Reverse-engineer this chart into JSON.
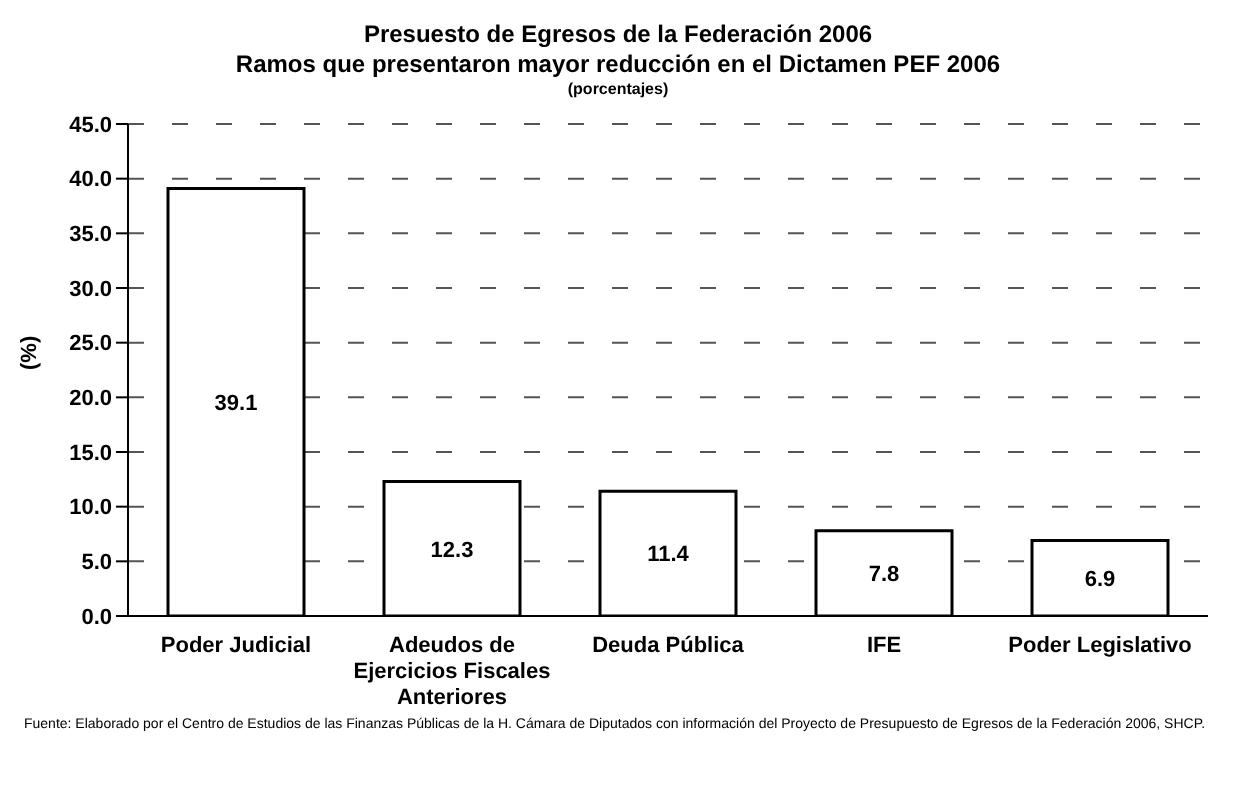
{
  "chart_data": {
    "type": "bar",
    "title": "Presuesto de Egresos de la Federación 2006",
    "subtitle": "Ramos que presentaron mayor reducción en el Dictamen PEF 2006",
    "annotations": [
      "(porcentajes)",
      "Fuente: Elaborado por el Centro de Estudios de las Finanzas Públicas de la H. Cámara de Diputados con información del Proyecto de Presupuesto de Egresos de la Federación 2006, SHCP."
    ],
    "ylabel": "(%)",
    "categories": [
      "Poder Judicial",
      "Adeudos de Ejercicios Fiscales Anteriores",
      "Deuda Pública",
      "IFE",
      "Poder Legislativo"
    ],
    "values": [
      39.1,
      12.3,
      11.4,
      7.8,
      6.9
    ],
    "color": "#ffffff",
    "ylim": [
      0,
      45
    ],
    "yticks": [
      {
        "value": 0,
        "label": "0.0"
      },
      {
        "value": 5,
        "label": "5.0"
      },
      {
        "value": 10,
        "label": "10.0"
      },
      {
        "value": 15,
        "label": "15.0"
      },
      {
        "value": 20,
        "label": "20.0"
      },
      {
        "value": 25,
        "label": "25.0"
      },
      {
        "value": 30,
        "label": "30.0"
      },
      {
        "value": 35,
        "label": "35.0"
      },
      {
        "value": 40,
        "label": "40.0"
      },
      {
        "value": 45,
        "label": "45.0"
      }
    ],
    "grid": "y",
    "data_labels": true
  }
}
